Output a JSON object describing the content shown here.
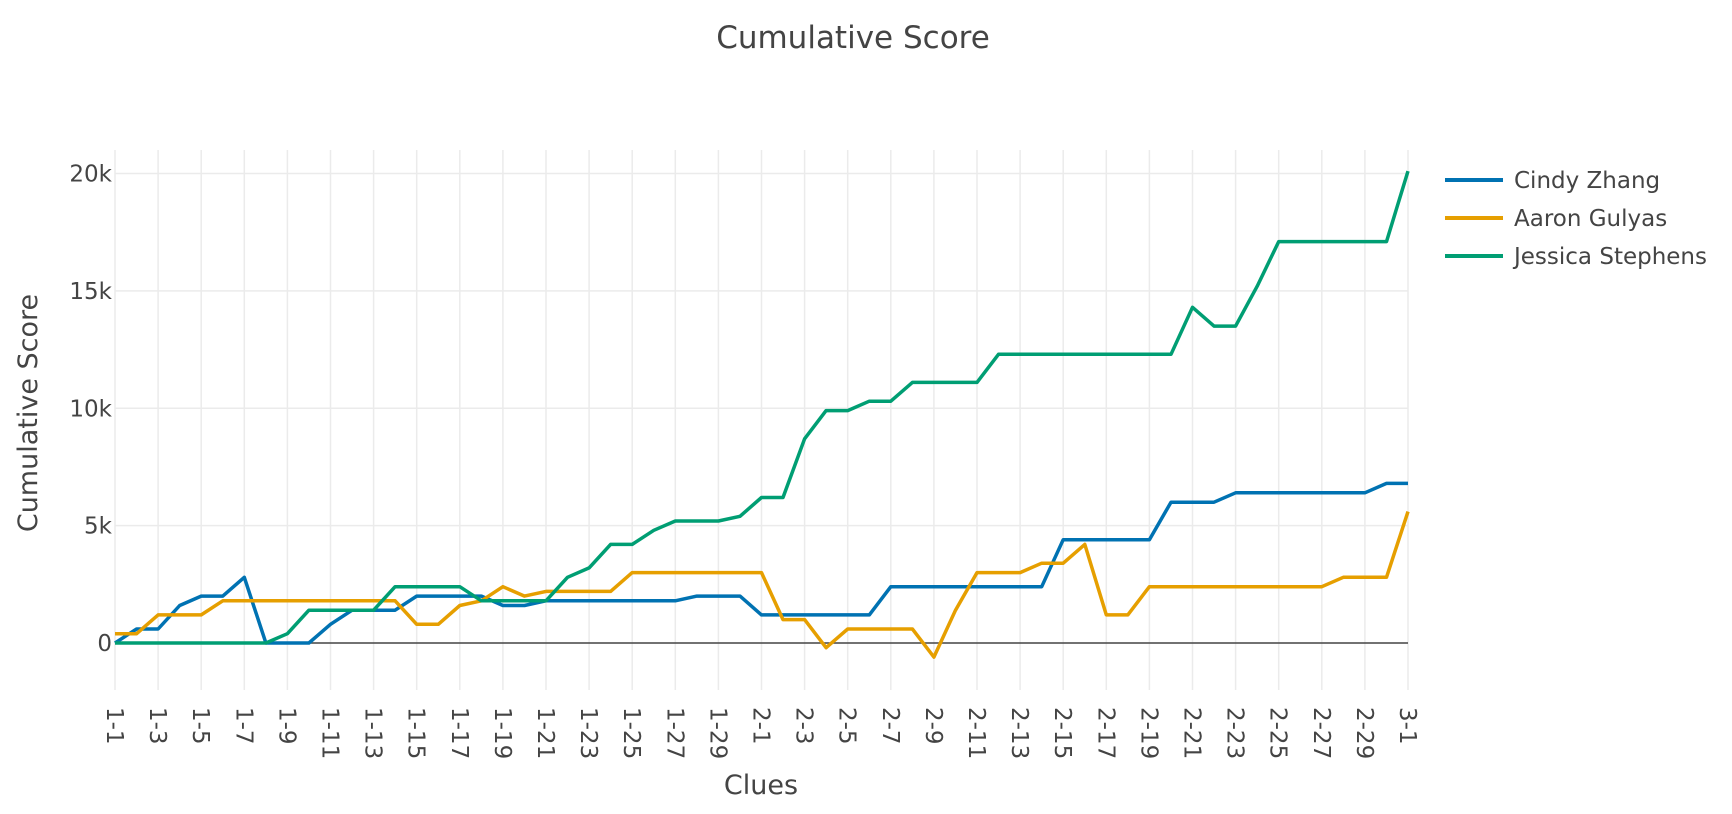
{
  "chart_data": {
    "type": "line",
    "title": "Cumulative Score",
    "xlabel": "Clues",
    "ylabel": "Cumulative Score",
    "ylim": [
      -2000,
      21000
    ],
    "yticks": [
      0,
      5000,
      10000,
      15000,
      20000
    ],
    "ytick_labels": [
      "0",
      "5k",
      "10k",
      "15k",
      "20k"
    ],
    "grid": true,
    "legend_position": "top-right",
    "categories": [
      "1-1",
      "1-2",
      "1-3",
      "1-4",
      "1-5",
      "1-6",
      "1-7",
      "1-8",
      "1-9",
      "1-10",
      "1-11",
      "1-12",
      "1-13",
      "1-14",
      "1-15",
      "1-16",
      "1-17",
      "1-18",
      "1-19",
      "1-20",
      "1-21",
      "1-22",
      "1-23",
      "1-24",
      "1-25",
      "1-26",
      "1-27",
      "1-28",
      "1-29",
      "1-30",
      "2-1",
      "2-2",
      "2-3",
      "2-4",
      "2-5",
      "2-6",
      "2-7",
      "2-8",
      "2-9",
      "2-10",
      "2-11",
      "2-12",
      "2-13",
      "2-14",
      "2-15",
      "2-16",
      "2-17",
      "2-18",
      "2-19",
      "2-20",
      "2-21",
      "2-22",
      "2-23",
      "2-24",
      "2-25",
      "2-26",
      "2-27",
      "2-28",
      "2-29",
      "2-30",
      "3-1"
    ],
    "tick_labels": [
      "1-1",
      "1-3",
      "1-5",
      "1-7",
      "1-9",
      "1-11",
      "1-13",
      "1-15",
      "1-17",
      "1-19",
      "1-21",
      "1-23",
      "1-25",
      "1-27",
      "1-29",
      "2-1",
      "2-3",
      "2-5",
      "2-7",
      "2-9",
      "2-11",
      "2-13",
      "2-15",
      "2-17",
      "2-19",
      "2-21",
      "2-23",
      "2-25",
      "2-27",
      "2-29",
      "3-1"
    ],
    "series": [
      {
        "name": "Cindy Zhang",
        "color": "#0072B2",
        "values": [
          0,
          600,
          600,
          1600,
          2000,
          2000,
          2800,
          0,
          0,
          0,
          800,
          1400,
          1400,
          1400,
          2000,
          2000,
          2000,
          2000,
          1600,
          1600,
          1800,
          1800,
          1800,
          1800,
          1800,
          1800,
          1800,
          2000,
          2000,
          2000,
          1200,
          1200,
          1200,
          1200,
          1200,
          1200,
          2400,
          2400,
          2400,
          2400,
          2400,
          2400,
          2400,
          2400,
          4400,
          4400,
          4400,
          4400,
          4400,
          6000,
          6000,
          6000,
          6400,
          6400,
          6400,
          6400,
          6400,
          6400,
          6400,
          6800,
          6800
        ]
      },
      {
        "name": "Aaron Gulyas",
        "color": "#E69F00",
        "values": [
          400,
          400,
          1200,
          1200,
          1200,
          1800,
          1800,
          1800,
          1800,
          1800,
          1800,
          1800,
          1800,
          1800,
          800,
          800,
          1600,
          1800,
          2400,
          2000,
          2200,
          2200,
          2200,
          2200,
          3000,
          3000,
          3000,
          3000,
          3000,
          3000,
          3000,
          1000,
          1000,
          -200,
          600,
          600,
          600,
          600,
          -600,
          1400,
          3000,
          3000,
          3000,
          3400,
          3400,
          4200,
          1200,
          1200,
          2400,
          2400,
          2400,
          2400,
          2400,
          2400,
          2400,
          2400,
          2400,
          2800,
          2800,
          2800,
          5600
        ]
      },
      {
        "name": "Jessica Stephens",
        "color": "#009E73",
        "values": [
          0,
          0,
          0,
          0,
          0,
          0,
          0,
          0,
          400,
          1400,
          1400,
          1400,
          1400,
          2400,
          2400,
          2400,
          2400,
          1800,
          1800,
          1800,
          1800,
          2800,
          3200,
          4200,
          4200,
          4800,
          5200,
          5200,
          5200,
          5400,
          6200,
          6200,
          8700,
          9900,
          9900,
          10300,
          10300,
          11100,
          11100,
          11100,
          11100,
          12300,
          12300,
          12300,
          12300,
          12300,
          12300,
          12300,
          12300,
          12300,
          14300,
          13500,
          13500,
          15200,
          17100,
          17100,
          17100,
          17100,
          17100,
          17100,
          20100
        ]
      }
    ]
  }
}
